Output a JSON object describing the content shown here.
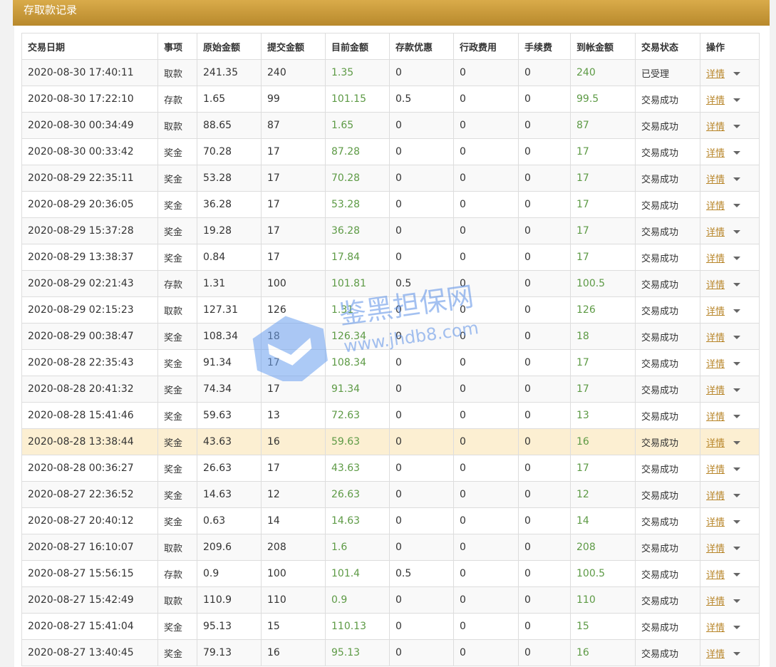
{
  "header": {
    "title": "存取款记录"
  },
  "watermark": {
    "name": "鉴黑担保网",
    "url": "www.jhdb8.com"
  },
  "table": {
    "columns": [
      "交易日期",
      "事项",
      "原始金额",
      "提交金额",
      "目前金额",
      "存款优惠",
      "行政费用",
      "手续费",
      "到帐金额",
      "交易状态",
      "操作"
    ],
    "rows": [
      [
        "2020-08-30 17:40:11",
        "取款",
        241.35,
        240,
        1.35,
        0,
        0,
        0,
        240,
        "已受理",
        "详情"
      ],
      [
        "2020-08-30 17:22:10",
        "存款",
        1.65,
        99,
        101.15,
        0.5,
        0,
        0,
        99.5,
        "交易成功",
        "详情"
      ],
      [
        "2020-08-30 00:34:49",
        "取款",
        88.65,
        87,
        1.65,
        0,
        0,
        0,
        87,
        "交易成功",
        "详情"
      ],
      [
        "2020-08-30 00:33:42",
        "奖金",
        70.28,
        17,
        87.28,
        0,
        0,
        0,
        17,
        "交易成功",
        "详情"
      ],
      [
        "2020-08-29 22:35:11",
        "奖金",
        53.28,
        17,
        70.28,
        0,
        0,
        0,
        17,
        "交易成功",
        "详情"
      ],
      [
        "2020-08-29 20:36:05",
        "奖金",
        36.28,
        17,
        53.28,
        0,
        0,
        0,
        17,
        "交易成功",
        "详情"
      ],
      [
        "2020-08-29 15:37:28",
        "奖金",
        19.28,
        17,
        36.28,
        0,
        0,
        0,
        17,
        "交易成功",
        "详情"
      ],
      [
        "2020-08-29 13:38:37",
        "奖金",
        0.84,
        17,
        17.84,
        0,
        0,
        0,
        17,
        "交易成功",
        "详情"
      ],
      [
        "2020-08-29 02:21:43",
        "存款",
        1.31,
        100,
        101.81,
        0.5,
        0,
        0,
        100.5,
        "交易成功",
        "详情"
      ],
      [
        "2020-08-29 02:15:23",
        "取款",
        127.31,
        126,
        1.31,
        0,
        0,
        0,
        126,
        "交易成功",
        "详情"
      ],
      [
        "2020-08-29 00:38:47",
        "奖金",
        108.34,
        18,
        126.34,
        0,
        0,
        0,
        18,
        "交易成功",
        "详情"
      ],
      [
        "2020-08-28 22:35:43",
        "奖金",
        91.34,
        17,
        108.34,
        0,
        0,
        0,
        17,
        "交易成功",
        "详情"
      ],
      [
        "2020-08-28 20:41:32",
        "奖金",
        74.34,
        17,
        91.34,
        0,
        0,
        0,
        17,
        "交易成功",
        "详情"
      ],
      [
        "2020-08-28 15:41:46",
        "奖金",
        59.63,
        13,
        72.63,
        0,
        0,
        0,
        13,
        "交易成功",
        "详情"
      ],
      [
        "2020-08-28 13:38:44",
        "奖金",
        43.63,
        16,
        59.63,
        0,
        0,
        0,
        16,
        "交易成功",
        "详情"
      ],
      [
        "2020-08-28 00:36:27",
        "奖金",
        26.63,
        17,
        43.63,
        0,
        0,
        0,
        17,
        "交易成功",
        "详情"
      ],
      [
        "2020-08-27 22:36:52",
        "奖金",
        14.63,
        12,
        26.63,
        0,
        0,
        0,
        12,
        "交易成功",
        "详情"
      ],
      [
        "2020-08-27 20:40:12",
        "奖金",
        0.63,
        14,
        14.63,
        0,
        0,
        0,
        14,
        "交易成功",
        "详情"
      ],
      [
        "2020-08-27 16:10:07",
        "取款",
        209.6,
        208,
        1.6,
        0,
        0,
        0,
        208,
        "交易成功",
        "详情"
      ],
      [
        "2020-08-27 15:56:15",
        "存款",
        0.9,
        100,
        101.4,
        0.5,
        0,
        0,
        100.5,
        "交易成功",
        "详情"
      ],
      [
        "2020-08-27 15:42:49",
        "取款",
        110.9,
        110,
        0.9,
        0,
        0,
        0,
        110,
        "交易成功",
        "详情"
      ],
      [
        "2020-08-27 15:41:04",
        "奖金",
        95.13,
        15,
        110.13,
        0,
        0,
        0,
        15,
        "交易成功",
        "详情"
      ],
      [
        "2020-08-27 13:40:45",
        "奖金",
        79.13,
        16,
        95.13,
        0,
        0,
        0,
        16,
        "交易成功",
        "详情"
      ]
    ]
  }
}
